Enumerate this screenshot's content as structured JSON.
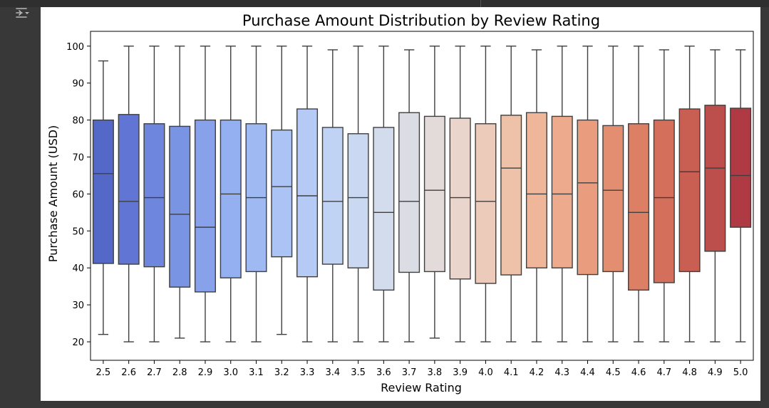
{
  "toolbar": {
    "icon": "output-settings-icon"
  },
  "chart_data": {
    "type": "box",
    "title": "Purchase Amount Distribution by Review Rating",
    "xlabel": "Review Rating",
    "ylabel": "Purchase Amount (USD)",
    "ylim": [
      15,
      104
    ],
    "yticks": [
      20,
      30,
      40,
      50,
      60,
      70,
      80,
      90,
      100
    ],
    "grid": false,
    "legend": "none",
    "palette": "coolwarm",
    "categories": [
      "2.5",
      "2.6",
      "2.7",
      "2.8",
      "2.9",
      "3.0",
      "3.1",
      "3.2",
      "3.3",
      "3.4",
      "3.5",
      "3.6",
      "3.7",
      "3.8",
      "3.9",
      "4.0",
      "4.1",
      "4.2",
      "4.3",
      "4.4",
      "4.5",
      "4.6",
      "4.7",
      "4.8",
      "4.9",
      "5.0"
    ],
    "boxes": [
      {
        "whislo": 22,
        "q1": 41.2,
        "med": 65.5,
        "q3": 80,
        "whishi": 96,
        "color": "#5468c8"
      },
      {
        "whislo": 20,
        "q1": 41,
        "med": 58,
        "q3": 81.5,
        "whishi": 100,
        "color": "#6176d4"
      },
      {
        "whislo": 20,
        "q1": 40.3,
        "med": 59,
        "q3": 79,
        "whishi": 100,
        "color": "#6e86dd"
      },
      {
        "whislo": 21,
        "q1": 34.8,
        "med": 54.5,
        "q3": 78.3,
        "whishi": 100,
        "color": "#7a94e4"
      },
      {
        "whislo": 20,
        "q1": 33.5,
        "med": 51,
        "q3": 80,
        "whishi": 100,
        "color": "#87a2ea"
      },
      {
        "whislo": 20,
        "q1": 37.3,
        "med": 60,
        "q3": 80,
        "whishi": 100,
        "color": "#94b0f0"
      },
      {
        "whislo": 20,
        "q1": 39,
        "med": 59,
        "q3": 79,
        "whishi": 100,
        "color": "#9fbaf3"
      },
      {
        "whislo": 22,
        "q1": 43,
        "med": 62,
        "q3": 77.3,
        "whishi": 100,
        "color": "#abc3f5"
      },
      {
        "whislo": 20,
        "q1": 37.6,
        "med": 59.5,
        "q3": 83,
        "whishi": 100,
        "color": "#b5cbf6"
      },
      {
        "whislo": 20,
        "q1": 41,
        "med": 58,
        "q3": 78,
        "whishi": 99,
        "color": "#c0d3f5"
      },
      {
        "whislo": 20,
        "q1": 40,
        "med": 59,
        "q3": 76.3,
        "whishi": 100,
        "color": "#cad8f1"
      },
      {
        "whislo": 20,
        "q1": 34,
        "med": 55,
        "q3": 78,
        "whishi": 100,
        "color": "#d2dcec"
      },
      {
        "whislo": 20,
        "q1": 38.8,
        "med": 58,
        "q3": 82,
        "whishi": 99,
        "color": "#dbdde5"
      },
      {
        "whislo": 21,
        "q1": 39,
        "med": 61,
        "q3": 81,
        "whishi": 100,
        "color": "#e3dbd9"
      },
      {
        "whislo": 20,
        "q1": 37,
        "med": 59,
        "q3": 80.5,
        "whishi": 100,
        "color": "#e9d5cc"
      },
      {
        "whislo": 20,
        "q1": 35.8,
        "med": 58,
        "q3": 79,
        "whishi": 100,
        "color": "#eccbba"
      },
      {
        "whislo": 20,
        "q1": 38.1,
        "med": 67,
        "q3": 81.3,
        "whishi": 100,
        "color": "#eec1a9"
      },
      {
        "whislo": 20,
        "q1": 40,
        "med": 60,
        "q3": 82,
        "whishi": 99,
        "color": "#efb69a"
      },
      {
        "whislo": 20,
        "q1": 40,
        "med": 60,
        "q3": 81,
        "whishi": 100,
        "color": "#edaa8c"
      },
      {
        "whislo": 20,
        "q1": 38.2,
        "med": 63,
        "q3": 80,
        "whishi": 100,
        "color": "#e99d7e"
      },
      {
        "whislo": 20,
        "q1": 39,
        "med": 61,
        "q3": 78.5,
        "whishi": 100,
        "color": "#e48e71"
      },
      {
        "whislo": 20,
        "q1": 34,
        "med": 55,
        "q3": 79,
        "whishi": 100,
        "color": "#dd7f65"
      },
      {
        "whislo": 20,
        "q1": 36,
        "med": 59,
        "q3": 80,
        "whishi": 99,
        "color": "#d46f5c"
      },
      {
        "whislo": 20,
        "q1": 39,
        "med": 66,
        "q3": 83,
        "whishi": 100,
        "color": "#c95e53"
      },
      {
        "whislo": 20,
        "q1": 44.5,
        "med": 67,
        "q3": 84,
        "whishi": 99,
        "color": "#bc4f4c"
      },
      {
        "whislo": 20,
        "q1": 51,
        "med": 65,
        "q3": 83.2,
        "whishi": 99,
        "color": "#b03a44"
      }
    ]
  }
}
